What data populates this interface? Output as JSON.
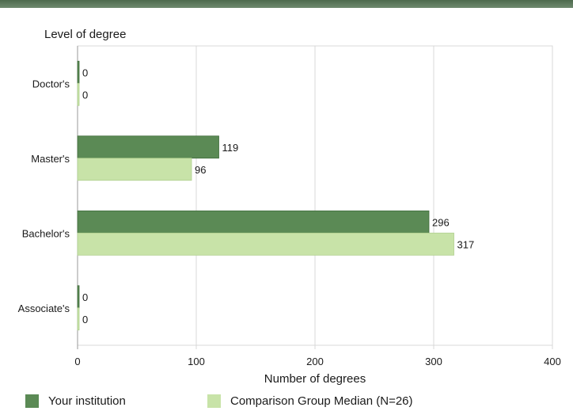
{
  "chart_data": {
    "type": "bar",
    "orientation": "horizontal",
    "ylabel": "Level of degree",
    "xlabel": "Number of degrees",
    "categories": [
      "Doctor's",
      "Master's",
      "Bachelor's",
      "Associate's"
    ],
    "series": [
      {
        "name": "Your institution",
        "values": [
          0,
          119,
          296,
          0
        ],
        "color": "#5b8a55"
      },
      {
        "name": "Comparison Group Median (N=26)",
        "values": [
          0,
          96,
          317,
          0
        ],
        "color": "#c8e3a8"
      }
    ],
    "xlim": [
      0,
      400
    ],
    "xticks": [
      0,
      100,
      200,
      300,
      400
    ],
    "grid": true,
    "legend_position": "bottom"
  }
}
